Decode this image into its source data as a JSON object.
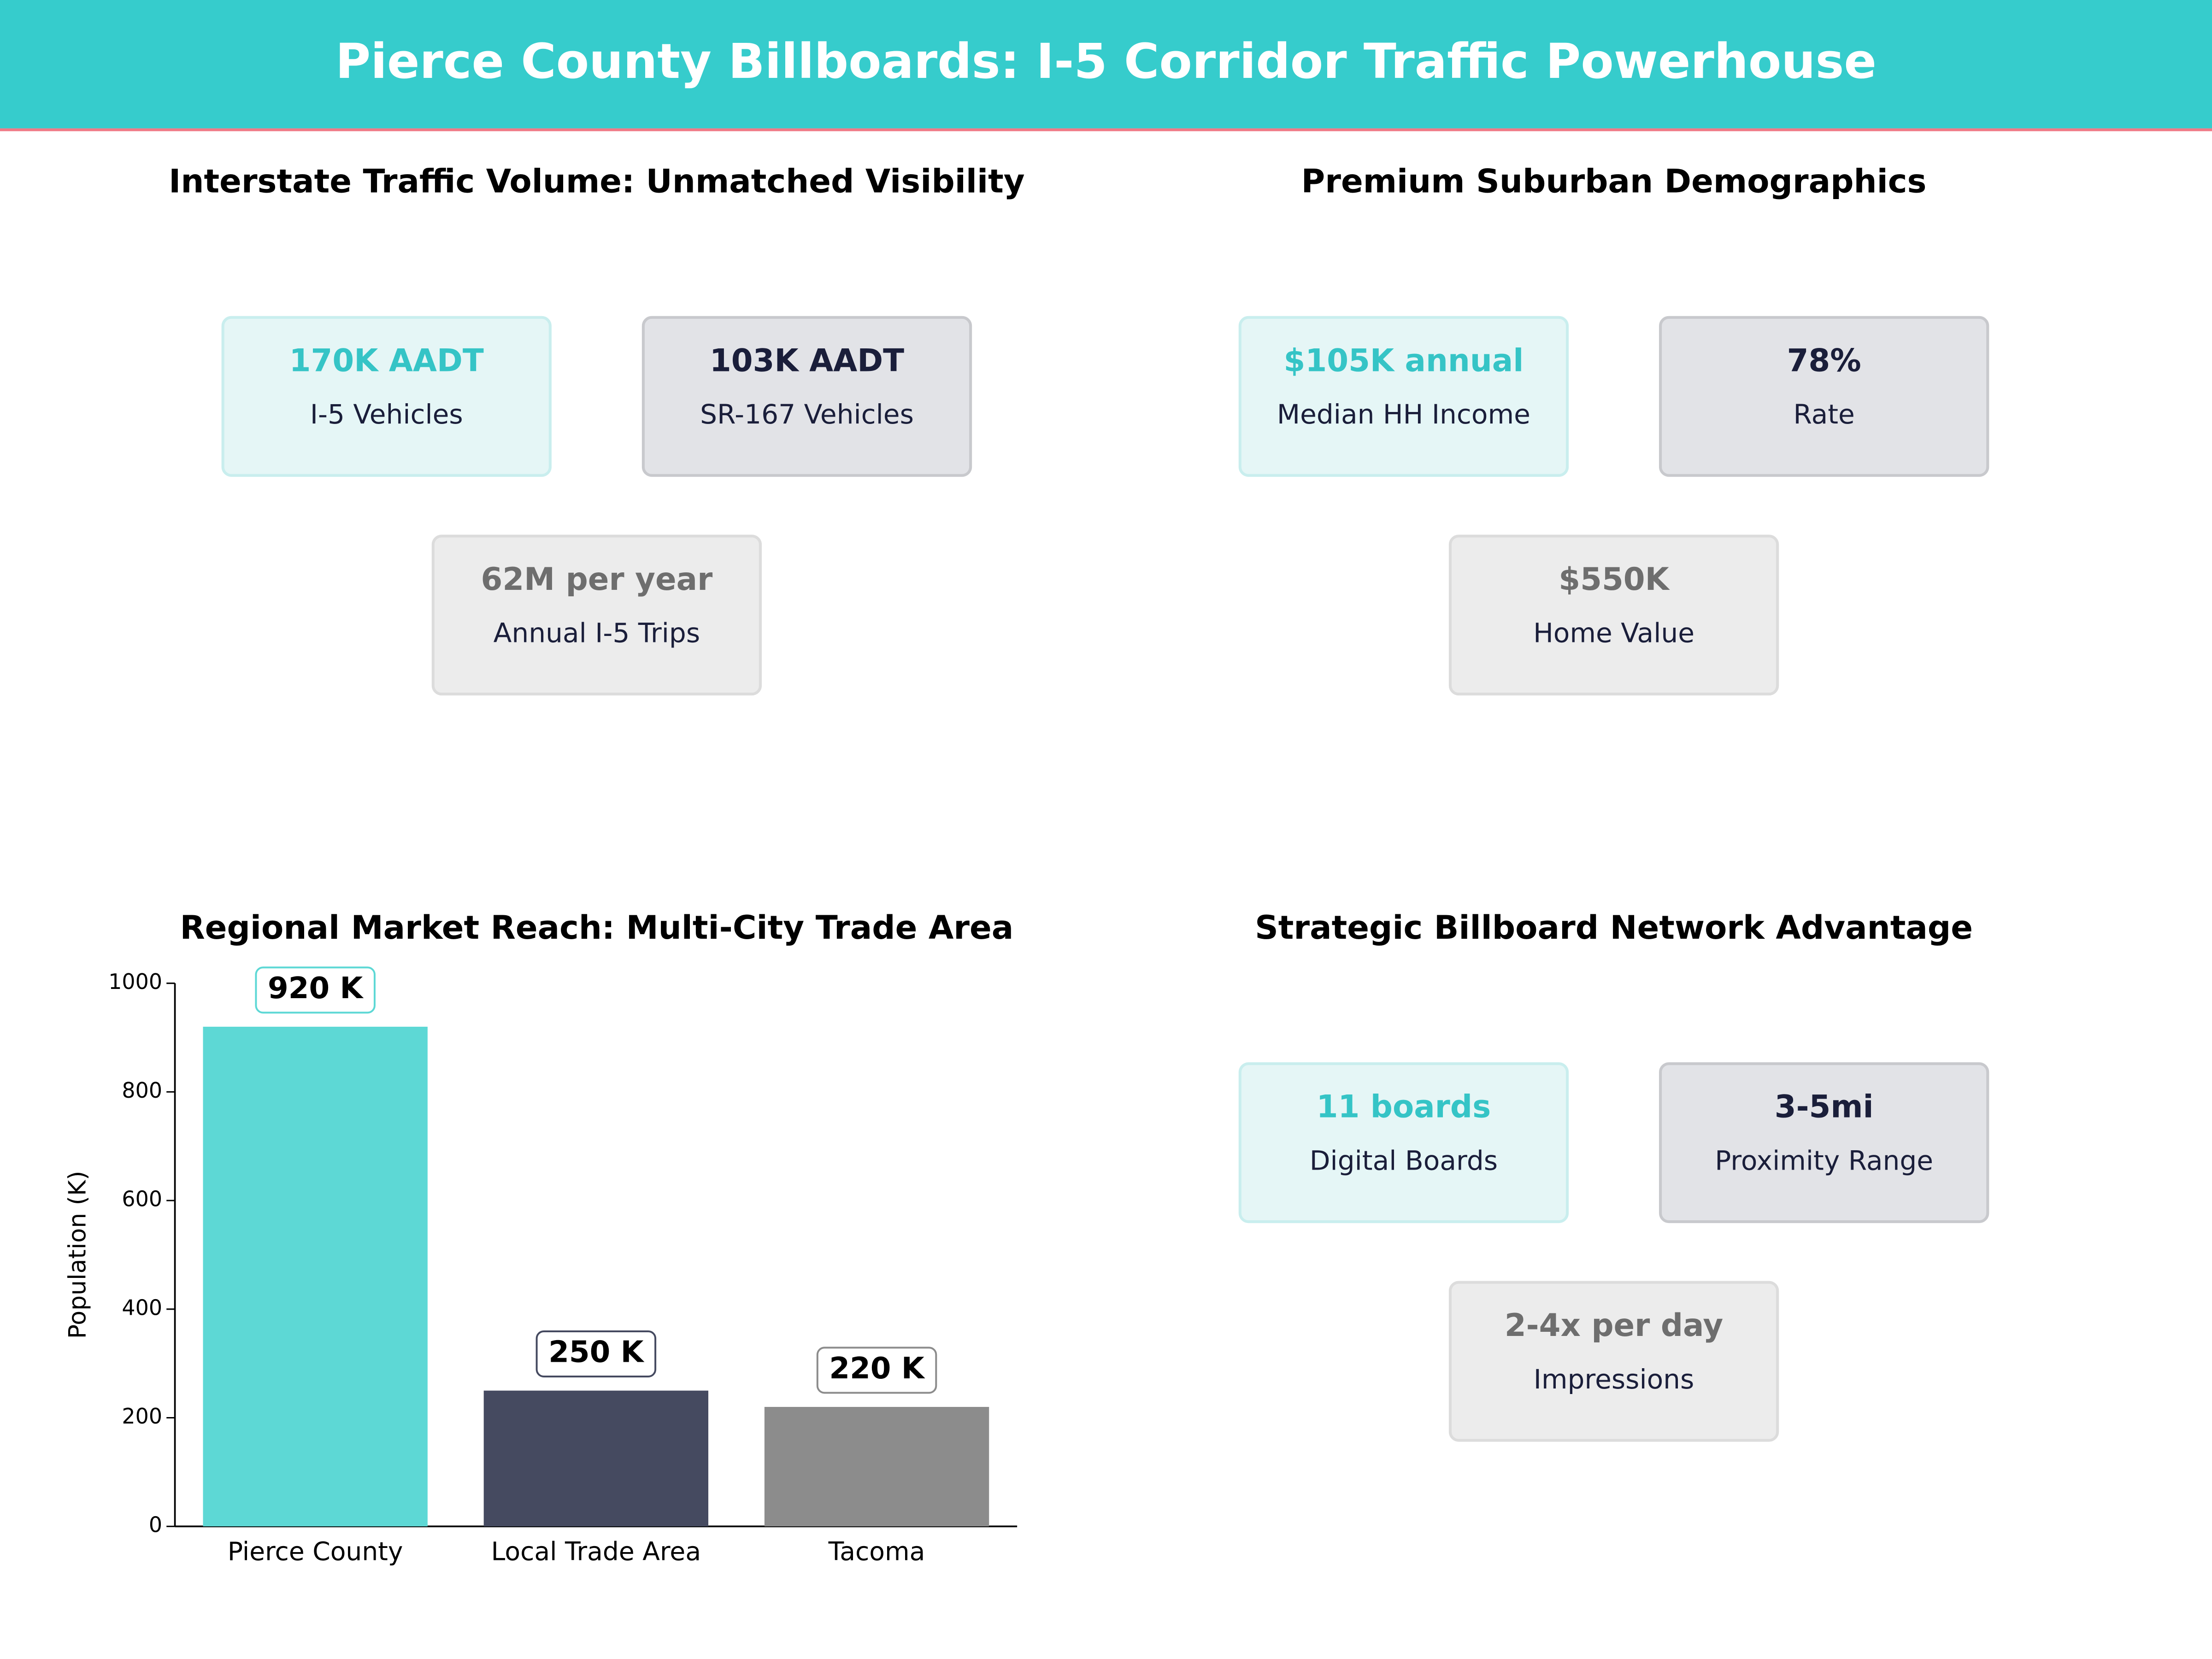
{
  "header": {
    "title": "Pierce County Billboards: I-5 Corridor Traffic Powerhouse"
  },
  "panels": [
    {
      "title": "Interstate Traffic Volume: Unmatched Visibility",
      "cards": [
        {
          "value": "170K AADT",
          "label": "I-5  Vehicles"
        },
        {
          "value": "103K AADT",
          "label": "SR-167  Vehicles"
        },
        {
          "value": "62M per year",
          "label": "Annual I-5 Trips"
        }
      ]
    },
    {
      "title": "Premium Suburban Demographics",
      "cards": [
        {
          "value": "$105K annual",
          "label": "Median HH Income"
        },
        {
          "value": "78%",
          "label": "Rate"
        },
        {
          "value": "$550K",
          "label": "Home Value"
        }
      ]
    },
    {
      "title": "Strategic Billboard Network Advantage",
      "cards": [
        {
          "value": "11 boards",
          "label": "Digital Boards"
        },
        {
          "value": "3-5mi",
          "label": "Proximity Range"
        },
        {
          "value": "2-4x per day",
          "label": "Impressions"
        }
      ]
    }
  ],
  "chart_data": {
    "type": "bar",
    "title": "Regional Market Reach: Multi-City Trade Area",
    "y_label": "Population (K)",
    "categories": [
      "Pierce County",
      "Local Trade Area",
      "Tacoma"
    ],
    "values": [
      920,
      250,
      220
    ],
    "value_labels": [
      "920 K",
      "250 K",
      "220 K"
    ],
    "colors": [
      "#5dd8d5",
      "#454a60",
      "#8c8c8c"
    ],
    "ylim": [
      0,
      1000
    ],
    "yticks": [
      0,
      200,
      400,
      600,
      800,
      1000
    ]
  }
}
